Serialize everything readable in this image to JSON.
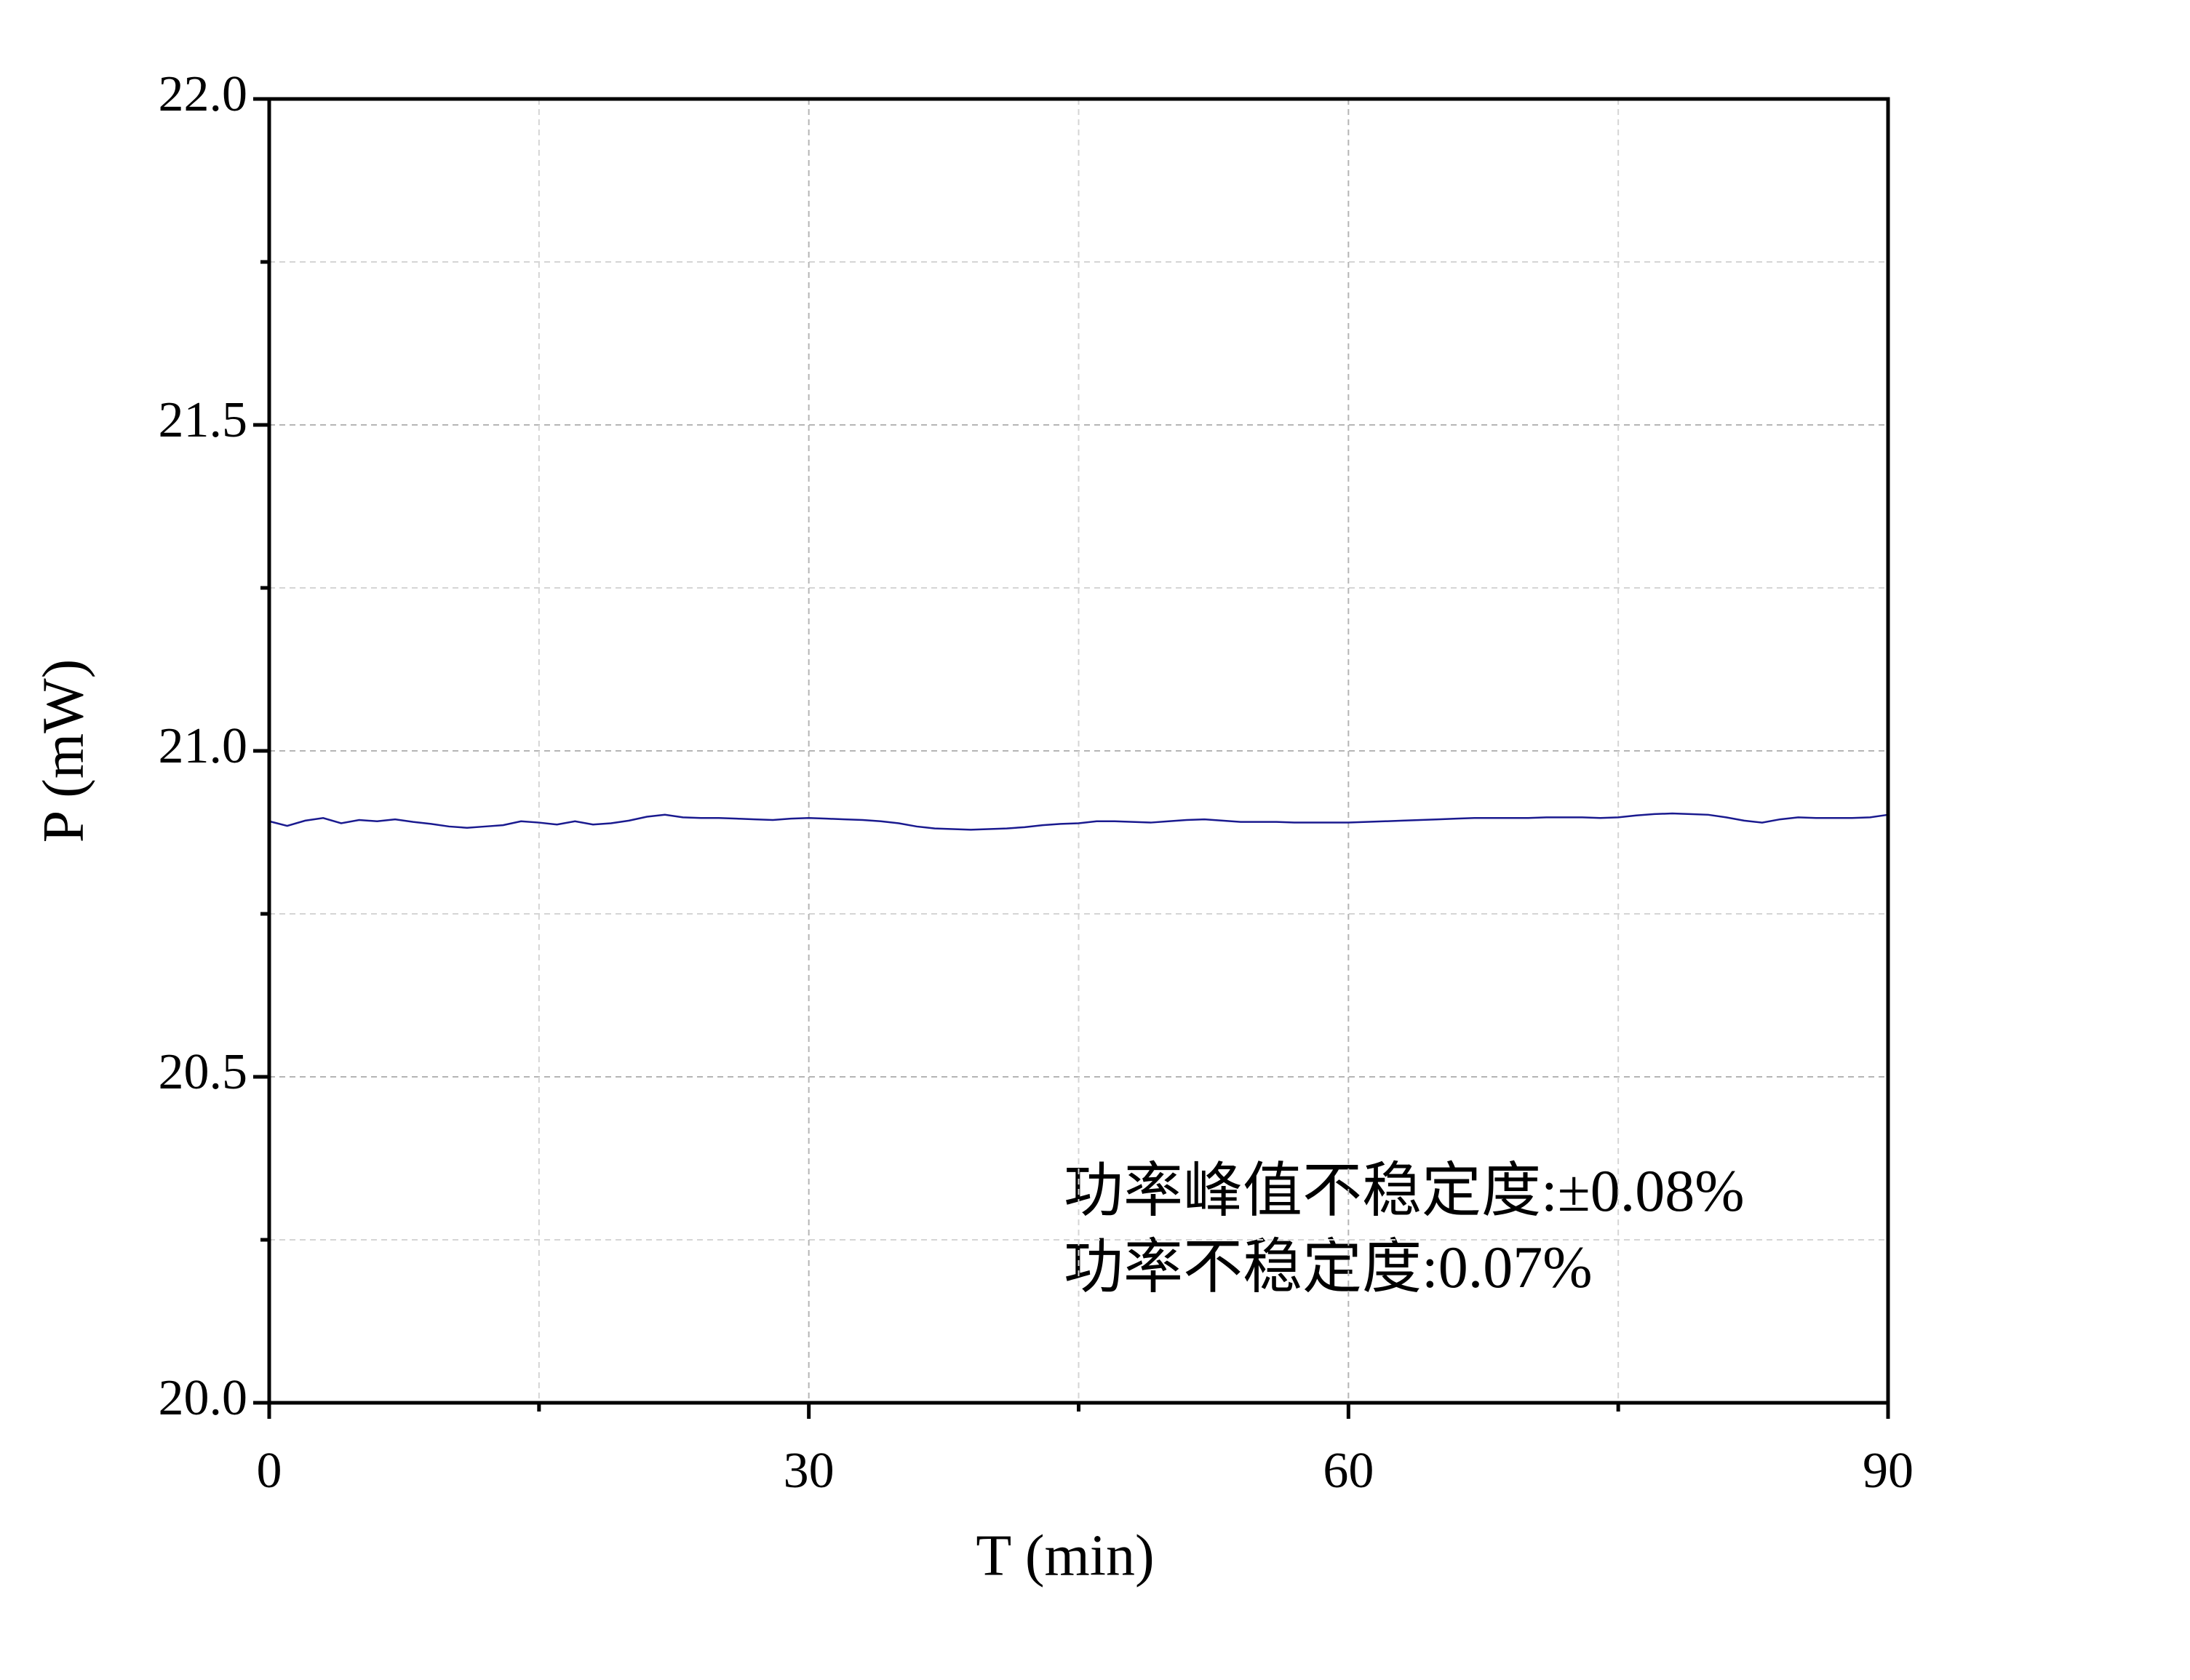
{
  "chart_data": {
    "type": "line",
    "xlabel": "T (min)",
    "ylabel": "P (mW)",
    "annotations": [
      "功率峰值不稳定度:±0.08%",
      "功率不稳定度:0.07%"
    ],
    "x": [
      0,
      1,
      2,
      3,
      4,
      5,
      6,
      7,
      8,
      9,
      10,
      11,
      12,
      13,
      14,
      15,
      16,
      17,
      18,
      19,
      20,
      21,
      22,
      23,
      24,
      25,
      26,
      27,
      28,
      29,
      30,
      31,
      32,
      33,
      34,
      35,
      36,
      37,
      38,
      39,
      40,
      41,
      42,
      43,
      44,
      45,
      46,
      47,
      48,
      49,
      50,
      51,
      52,
      53,
      54,
      55,
      56,
      57,
      58,
      59,
      60,
      61,
      62,
      63,
      64,
      65,
      66,
      67,
      68,
      69,
      70,
      71,
      72,
      73,
      74,
      75,
      76,
      77,
      78,
      79,
      80,
      81,
      82,
      83,
      84,
      85,
      86,
      87,
      88,
      89,
      90
    ],
    "values": [
      20.892,
      20.885,
      20.893,
      20.897,
      20.889,
      20.894,
      20.892,
      20.895,
      20.891,
      20.888,
      20.884,
      20.882,
      20.884,
      20.886,
      20.892,
      20.89,
      20.887,
      20.892,
      20.887,
      20.889,
      20.893,
      20.899,
      20.902,
      20.898,
      20.897,
      20.897,
      20.896,
      20.895,
      20.894,
      20.896,
      20.897,
      20.896,
      20.895,
      20.894,
      20.892,
      20.889,
      20.884,
      20.881,
      20.88,
      20.879,
      20.88,
      20.881,
      20.883,
      20.886,
      20.888,
      20.889,
      20.892,
      20.892,
      20.891,
      20.89,
      20.892,
      20.894,
      20.895,
      20.893,
      20.891,
      20.891,
      20.891,
      20.89,
      20.89,
      20.89,
      20.89,
      20.891,
      20.892,
      20.893,
      20.894,
      20.895,
      20.896,
      20.897,
      20.897,
      20.897,
      20.897,
      20.898,
      20.898,
      20.898,
      20.897,
      20.898,
      20.901,
      20.903,
      20.904,
      20.903,
      20.902,
      20.898,
      20.893,
      20.89,
      20.895,
      20.898,
      20.897,
      20.897,
      20.897,
      20.898,
      20.902
    ],
    "color": "#1a1a8f",
    "xlim": [
      0,
      90
    ],
    "xticks": [
      0,
      30,
      60,
      90
    ],
    "minor_xticks": [
      15,
      45,
      75
    ],
    "ylim": [
      20,
      22
    ],
    "yticks": [
      {
        "value": 20,
        "label": "20.0"
      },
      20.5,
      {
        "value": 21,
        "label": "21.0"
      },
      21.5,
      {
        "value": 22,
        "label": "22.0"
      }
    ],
    "minor_yticks": [
      20.25,
      20.75,
      21.25,
      21.75
    ],
    "grid": true
  }
}
